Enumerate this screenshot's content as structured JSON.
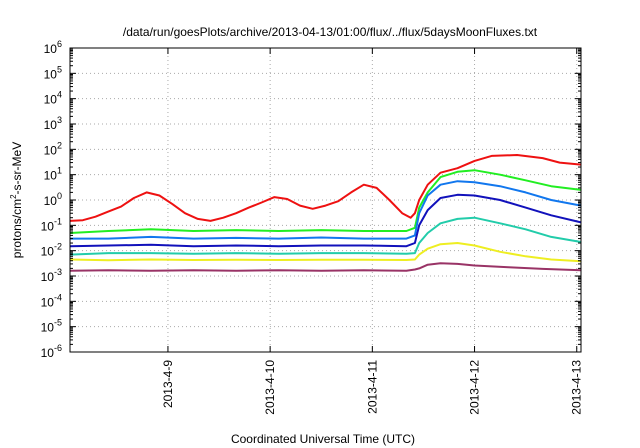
{
  "chart_data": {
    "type": "line",
    "title": "/data/run/goesPlots/archive/2013-04-13/01:00/flux/../flux/5daysMoonFluxes.txt",
    "xlabel": "Coordinated Universal Time (UTC)",
    "ylabel": {
      "prefix": "protons/cm",
      "sup": "2",
      "suffix": "-s-sr-MeV"
    },
    "y_scale": "log",
    "ylim": [
      1e-06,
      1000000.0
    ],
    "y_ticks": [
      {
        "value": 1e-06,
        "base": "10",
        "exp": "-6"
      },
      {
        "value": 1e-05,
        "base": "10",
        "exp": "-5"
      },
      {
        "value": 0.0001,
        "base": "10",
        "exp": "-4"
      },
      {
        "value": 0.001,
        "base": "10",
        "exp": "-3"
      },
      {
        "value": 0.01,
        "base": "10",
        "exp": "-2"
      },
      {
        "value": 0.1,
        "base": "10",
        "exp": "-1"
      },
      {
        "value": 1,
        "base": "10",
        "exp": "0"
      },
      {
        "value": 10,
        "base": "10",
        "exp": "1"
      },
      {
        "value": 100,
        "base": "10",
        "exp": "2"
      },
      {
        "value": 1000,
        "base": "10",
        "exp": "3"
      },
      {
        "value": 10000,
        "base": "10",
        "exp": "4"
      },
      {
        "value": 100000,
        "base": "10",
        "exp": "5"
      },
      {
        "value": 1000000,
        "base": "10",
        "exp": "6"
      }
    ],
    "xlim": [
      "2013-04-08 01:00",
      "2013-04-13 01:00"
    ],
    "x_ticks": [
      {
        "value": "2013-04-09 00:00",
        "label": "2013-4-9"
      },
      {
        "value": "2013-04-10 00:00",
        "label": "2013-4-10"
      },
      {
        "value": "2013-04-11 00:00",
        "label": "2013-4-11"
      },
      {
        "value": "2013-04-12 00:00",
        "label": "2013-4-12"
      },
      {
        "value": "2013-04-13 00:00",
        "label": "2013-4-13"
      }
    ],
    "grid": true,
    "series": [
      {
        "color": "#ee1111",
        "points": [
          [
            "2013-04-08 01:00",
            0.15
          ],
          [
            "2013-04-08 04:00",
            0.16
          ],
          [
            "2013-04-08 07:00",
            0.22
          ],
          [
            "2013-04-08 10:00",
            0.35
          ],
          [
            "2013-04-08 13:00",
            0.55
          ],
          [
            "2013-04-08 16:00",
            1.2
          ],
          [
            "2013-04-08 19:00",
            2.0
          ],
          [
            "2013-04-08 22:00",
            1.5
          ],
          [
            "2013-04-09 01:00",
            0.7
          ],
          [
            "2013-04-09 04:00",
            0.3
          ],
          [
            "2013-04-09 07:00",
            0.18
          ],
          [
            "2013-04-09 10:00",
            0.15
          ],
          [
            "2013-04-09 13:00",
            0.2
          ],
          [
            "2013-04-09 16:00",
            0.3
          ],
          [
            "2013-04-09 19:00",
            0.5
          ],
          [
            "2013-04-09 22:00",
            0.8
          ],
          [
            "2013-04-10 01:00",
            1.3
          ],
          [
            "2013-04-10 04:00",
            1.1
          ],
          [
            "2013-04-10 07:00",
            0.6
          ],
          [
            "2013-04-10 10:00",
            0.45
          ],
          [
            "2013-04-10 13:00",
            0.6
          ],
          [
            "2013-04-10 16:00",
            0.9
          ],
          [
            "2013-04-10 19:00",
            2.0
          ],
          [
            "2013-04-10 22:00",
            4.0
          ],
          [
            "2013-04-11 01:00",
            3.0
          ],
          [
            "2013-04-11 04:00",
            1.0
          ],
          [
            "2013-04-11 07:00",
            0.3
          ],
          [
            "2013-04-11 09:00",
            0.2
          ],
          [
            "2013-04-11 10:00",
            0.3
          ],
          [
            "2013-04-11 11:00",
            1.0
          ],
          [
            "2013-04-11 13:00",
            4.0
          ],
          [
            "2013-04-11 16:00",
            12
          ],
          [
            "2013-04-11 20:00",
            18
          ],
          [
            "2013-04-12 00:00",
            35
          ],
          [
            "2013-04-12 04:00",
            55
          ],
          [
            "2013-04-12 10:00",
            60
          ],
          [
            "2013-04-12 16:00",
            45
          ],
          [
            "2013-04-12 20:00",
            30
          ],
          [
            "2013-04-13 01:00",
            25
          ]
        ]
      },
      {
        "color": "#22ee22",
        "points": [
          [
            "2013-04-08 01:00",
            0.05
          ],
          [
            "2013-04-08 10:00",
            0.06
          ],
          [
            "2013-04-08 20:00",
            0.07
          ],
          [
            "2013-04-09 06:00",
            0.06
          ],
          [
            "2013-04-09 16:00",
            0.065
          ],
          [
            "2013-04-10 02:00",
            0.06
          ],
          [
            "2013-04-10 12:00",
            0.065
          ],
          [
            "2013-04-10 22:00",
            0.06
          ],
          [
            "2013-04-11 08:00",
            0.06
          ],
          [
            "2013-04-11 10:00",
            0.08
          ],
          [
            "2013-04-11 11:00",
            0.5
          ],
          [
            "2013-04-11 13:00",
            2.0
          ],
          [
            "2013-04-11 16:00",
            8.0
          ],
          [
            "2013-04-11 20:00",
            13
          ],
          [
            "2013-04-12 00:00",
            15
          ],
          [
            "2013-04-12 06:00",
            10
          ],
          [
            "2013-04-12 12:00",
            6.0
          ],
          [
            "2013-04-12 18:00",
            3.5
          ],
          [
            "2013-04-13 01:00",
            2.5
          ]
        ]
      },
      {
        "color": "#1177ee",
        "points": [
          [
            "2013-04-08 01:00",
            0.03
          ],
          [
            "2013-04-08 10:00",
            0.03
          ],
          [
            "2013-04-08 20:00",
            0.035
          ],
          [
            "2013-04-09 06:00",
            0.03
          ],
          [
            "2013-04-09 16:00",
            0.032
          ],
          [
            "2013-04-10 02:00",
            0.03
          ],
          [
            "2013-04-10 12:00",
            0.033
          ],
          [
            "2013-04-10 22:00",
            0.03
          ],
          [
            "2013-04-11 08:00",
            0.03
          ],
          [
            "2013-04-11 10:00",
            0.04
          ],
          [
            "2013-04-11 11:00",
            0.3
          ],
          [
            "2013-04-11 13:00",
            1.5
          ],
          [
            "2013-04-11 16:00",
            4.0
          ],
          [
            "2013-04-11 20:00",
            5.5
          ],
          [
            "2013-04-12 00:00",
            5.0
          ],
          [
            "2013-04-12 06:00",
            3.5
          ],
          [
            "2013-04-12 12:00",
            2.0
          ],
          [
            "2013-04-12 18:00",
            1.0
          ],
          [
            "2013-04-13 01:00",
            0.6
          ]
        ]
      },
      {
        "color": "#1111bb",
        "points": [
          [
            "2013-04-08 01:00",
            0.015
          ],
          [
            "2013-04-08 10:00",
            0.016
          ],
          [
            "2013-04-08 20:00",
            0.017
          ],
          [
            "2013-04-09 06:00",
            0.015
          ],
          [
            "2013-04-09 16:00",
            0.016
          ],
          [
            "2013-04-10 02:00",
            0.015
          ],
          [
            "2013-04-10 12:00",
            0.016
          ],
          [
            "2013-04-10 22:00",
            0.016
          ],
          [
            "2013-04-11 08:00",
            0.015
          ],
          [
            "2013-04-11 10:00",
            0.02
          ],
          [
            "2013-04-11 11:00",
            0.1
          ],
          [
            "2013-04-11 13:00",
            0.4
          ],
          [
            "2013-04-11 16:00",
            1.2
          ],
          [
            "2013-04-11 20:00",
            1.6
          ],
          [
            "2013-04-12 00:00",
            1.5
          ],
          [
            "2013-04-12 06:00",
            1.0
          ],
          [
            "2013-04-12 12:00",
            0.5
          ],
          [
            "2013-04-12 18:00",
            0.25
          ],
          [
            "2013-04-13 01:00",
            0.13
          ]
        ]
      },
      {
        "color": "#22ccaa",
        "points": [
          [
            "2013-04-08 01:00",
            0.007
          ],
          [
            "2013-04-08 10:00",
            0.008
          ],
          [
            "2013-04-08 20:00",
            0.008
          ],
          [
            "2013-04-09 06:00",
            0.0075
          ],
          [
            "2013-04-09 16:00",
            0.008
          ],
          [
            "2013-04-10 02:00",
            0.0075
          ],
          [
            "2013-04-10 12:00",
            0.008
          ],
          [
            "2013-04-10 22:00",
            0.008
          ],
          [
            "2013-04-11 08:00",
            0.0075
          ],
          [
            "2013-04-11 10:00",
            0.008
          ],
          [
            "2013-04-11 11:00",
            0.02
          ],
          [
            "2013-04-11 13:00",
            0.05
          ],
          [
            "2013-04-11 16:00",
            0.12
          ],
          [
            "2013-04-11 20:00",
            0.18
          ],
          [
            "2013-04-12 00:00",
            0.2
          ],
          [
            "2013-04-12 06:00",
            0.12
          ],
          [
            "2013-04-12 12:00",
            0.07
          ],
          [
            "2013-04-12 18:00",
            0.035
          ],
          [
            "2013-04-13 01:00",
            0.022
          ]
        ]
      },
      {
        "color": "#eeee22",
        "points": [
          [
            "2013-04-08 01:00",
            0.0045
          ],
          [
            "2013-04-08 10:00",
            0.0042
          ],
          [
            "2013-04-08 20:00",
            0.0045
          ],
          [
            "2013-04-09 06:00",
            0.0043
          ],
          [
            "2013-04-09 16:00",
            0.0044
          ],
          [
            "2013-04-10 02:00",
            0.0043
          ],
          [
            "2013-04-10 12:00",
            0.0044
          ],
          [
            "2013-04-10 22:00",
            0.0044
          ],
          [
            "2013-04-11 08:00",
            0.0043
          ],
          [
            "2013-04-11 10:00",
            0.0045
          ],
          [
            "2013-04-11 11:00",
            0.007
          ],
          [
            "2013-04-11 13:00",
            0.012
          ],
          [
            "2013-04-11 16:00",
            0.018
          ],
          [
            "2013-04-11 20:00",
            0.02
          ],
          [
            "2013-04-12 00:00",
            0.016
          ],
          [
            "2013-04-12 06:00",
            0.009
          ],
          [
            "2013-04-12 12:00",
            0.006
          ],
          [
            "2013-04-12 18:00",
            0.0045
          ],
          [
            "2013-04-13 01:00",
            0.0038
          ]
        ]
      },
      {
        "color": "#993366",
        "points": [
          [
            "2013-04-08 01:00",
            0.0016
          ],
          [
            "2013-04-08 10:00",
            0.0017
          ],
          [
            "2013-04-08 20:00",
            0.0016
          ],
          [
            "2013-04-09 06:00",
            0.0017
          ],
          [
            "2013-04-09 16:00",
            0.0016
          ],
          [
            "2013-04-10 02:00",
            0.0017
          ],
          [
            "2013-04-10 12:00",
            0.0016
          ],
          [
            "2013-04-10 22:00",
            0.0017
          ],
          [
            "2013-04-11 08:00",
            0.0016
          ],
          [
            "2013-04-11 10:00",
            0.0018
          ],
          [
            "2013-04-11 11:00",
            0.002
          ],
          [
            "2013-04-11 13:00",
            0.0028
          ],
          [
            "2013-04-11 16:00",
            0.0032
          ],
          [
            "2013-04-11 20:00",
            0.003
          ],
          [
            "2013-04-12 00:00",
            0.0026
          ],
          [
            "2013-04-12 08:00",
            0.0022
          ],
          [
            "2013-04-12 16:00",
            0.0019
          ],
          [
            "2013-04-13 01:00",
            0.0017
          ]
        ]
      }
    ]
  }
}
